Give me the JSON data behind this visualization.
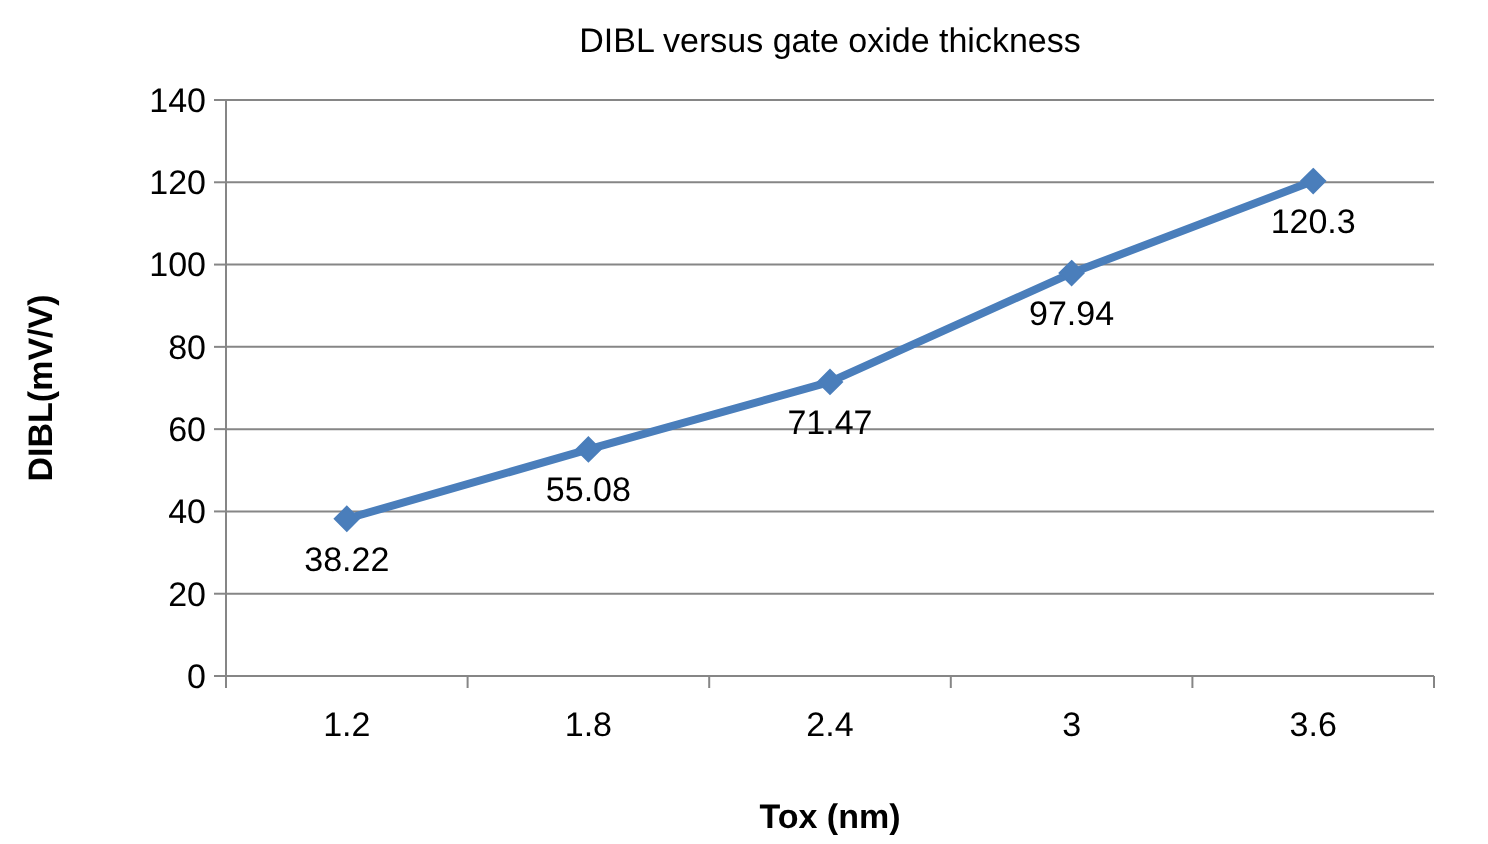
{
  "chart_data": {
    "type": "line",
    "title": "DIBL versus gate oxide thickness",
    "xlabel": "Tox (nm)",
    "ylabel": "DIBL(mV/V)",
    "categories": [
      "1.2",
      "1.8",
      "2.4",
      "3",
      "3.6"
    ],
    "series": [
      {
        "color": "#4a7ebb",
        "values": [
          38.22,
          55.08,
          71.47,
          97.94,
          120.3
        ]
      }
    ],
    "ylim": [
      0,
      140
    ],
    "yticks": [
      0,
      20,
      40,
      60,
      80,
      100,
      120,
      140
    ],
    "grid": "y",
    "marker": "diamond",
    "line_style": "solid",
    "data_labels": true
  }
}
